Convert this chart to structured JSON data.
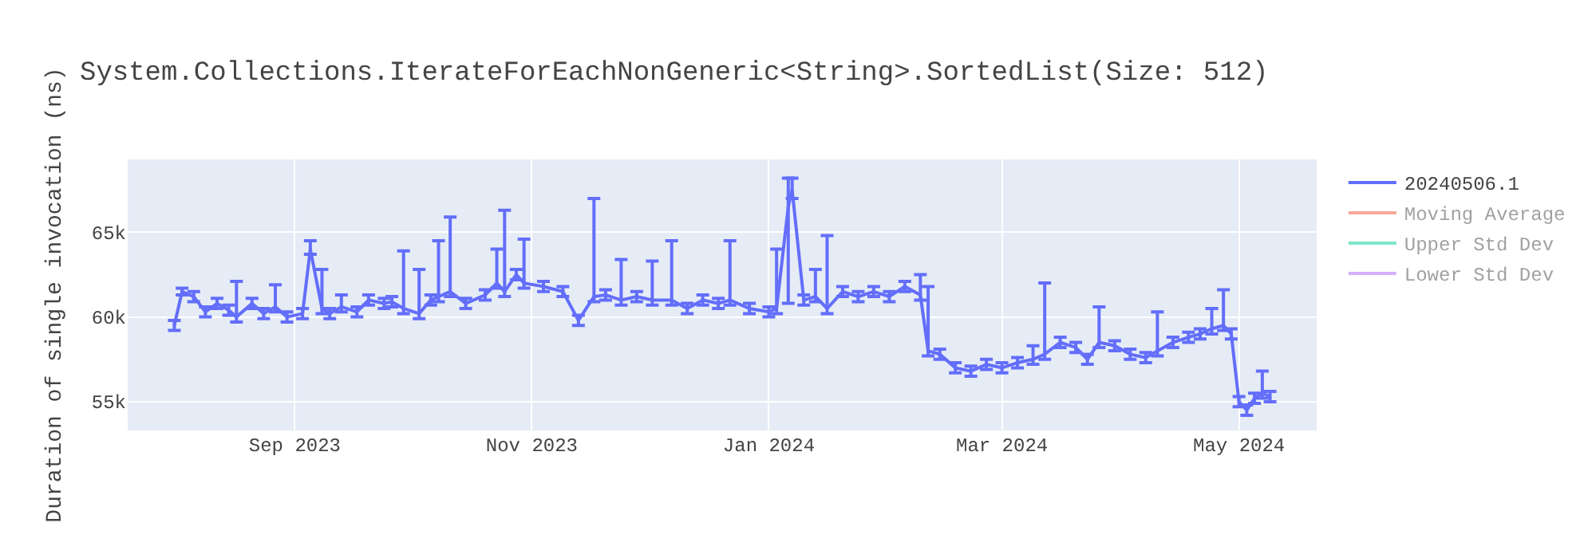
{
  "chart_data": {
    "type": "line",
    "title": "System.Collections.IterateForEachNonGeneric<String>.SortedList(Size: 512)",
    "ylabel": "Duration of single invocation (ns)",
    "x": [
      "2023-08-01",
      "2023-08-03",
      "2023-08-06",
      "2023-08-09",
      "2023-08-12",
      "2023-08-15",
      "2023-08-17",
      "2023-08-21",
      "2023-08-24",
      "2023-08-27",
      "2023-08-30",
      "2023-09-03",
      "2023-09-05",
      "2023-09-08",
      "2023-09-10",
      "2023-09-13",
      "2023-09-17",
      "2023-09-20",
      "2023-09-24",
      "2023-09-26",
      "2023-09-29",
      "2023-10-03",
      "2023-10-06",
      "2023-10-08",
      "2023-10-11",
      "2023-10-15",
      "2023-10-20",
      "2023-10-23",
      "2023-10-25",
      "2023-10-28",
      "2023-10-30",
      "2023-11-04",
      "2023-11-09",
      "2023-11-13",
      "2023-11-17",
      "2023-11-20",
      "2023-11-24",
      "2023-11-28",
      "2023-12-02",
      "2023-12-07",
      "2023-12-11",
      "2023-12-15",
      "2023-12-19",
      "2023-12-22",
      "2023-12-27",
      "2024-01-01",
      "2024-01-03",
      "2024-01-06",
      "2024-01-07",
      "2024-01-10",
      "2024-01-13",
      "2024-01-16",
      "2024-01-20",
      "2024-01-24",
      "2024-01-28",
      "2024-02-01",
      "2024-02-05",
      "2024-02-09",
      "2024-02-11",
      "2024-02-14",
      "2024-02-18",
      "2024-02-22",
      "2024-02-26",
      "2024-03-01",
      "2024-03-05",
      "2024-03-09",
      "2024-03-12",
      "2024-03-16",
      "2024-03-20",
      "2024-03-23",
      "2024-03-26",
      "2024-03-30",
      "2024-04-03",
      "2024-04-07",
      "2024-04-10",
      "2024-04-14",
      "2024-04-18",
      "2024-04-21",
      "2024-04-24",
      "2024-04-27",
      "2024-04-29",
      "2024-05-01",
      "2024-05-03",
      "2024-05-05",
      "2024-05-07",
      "2024-05-09"
    ],
    "series": [
      {
        "name": "20240506.1",
        "color": "#636efa",
        "values": [
          59500,
          61500,
          61200,
          60300,
          60800,
          60400,
          60000,
          60800,
          60200,
          60600,
          60000,
          60200,
          64000,
          60500,
          60200,
          60600,
          60300,
          61000,
          60800,
          60900,
          60500,
          60200,
          61000,
          61200,
          61500,
          60800,
          61300,
          62000,
          61500,
          62500,
          62000,
          61800,
          61500,
          59800,
          61200,
          61300,
          61000,
          61200,
          61000,
          61000,
          60500,
          61000,
          60800,
          61000,
          60500,
          60300,
          60500,
          66500,
          67500,
          61000,
          61200,
          60500,
          61500,
          61200,
          61500,
          61200,
          61800,
          61300,
          58000,
          57800,
          57000,
          56800,
          57200,
          57000,
          57300,
          57500,
          57800,
          58500,
          58200,
          57500,
          58500,
          58300,
          57800,
          57600,
          58000,
          58500,
          58800,
          59000,
          59300,
          59500,
          59000,
          55000,
          54500,
          55200,
          55500,
          55300
        ],
        "errors": [
          300,
          200,
          300,
          300,
          300,
          300,
          [
            59700,
            62100
          ],
          300,
          300,
          [
            60300,
            61900
          ],
          300,
          300,
          [
            63700,
            64500
          ],
          [
            60200,
            62800
          ],
          300,
          [
            60300,
            61300
          ],
          300,
          300,
          300,
          300,
          [
            60200,
            63900
          ],
          [
            59900,
            62800
          ],
          300,
          [
            60900,
            64500
          ],
          [
            61200,
            65900
          ],
          300,
          300,
          [
            61700,
            64000
          ],
          [
            61200,
            66300
          ],
          300,
          [
            61700,
            64600
          ],
          300,
          300,
          300,
          [
            60900,
            67000
          ],
          300,
          [
            60700,
            63400
          ],
          300,
          [
            60700,
            63300
          ],
          [
            60700,
            64500
          ],
          300,
          300,
          300,
          [
            60700,
            64500
          ],
          300,
          300,
          [
            60200,
            64000
          ],
          [
            60800,
            68200
          ],
          [
            67000,
            68200
          ],
          300,
          [
            60900,
            62800
          ],
          [
            60200,
            64800
          ],
          300,
          300,
          300,
          300,
          300,
          [
            61000,
            62500
          ],
          [
            57700,
            61800
          ],
          300,
          300,
          300,
          300,
          300,
          300,
          [
            57200,
            58300
          ],
          [
            57500,
            62000
          ],
          300,
          300,
          300,
          [
            58200,
            60600
          ],
          300,
          300,
          300,
          [
            57700,
            60300
          ],
          300,
          300,
          300,
          [
            59000,
            60500
          ],
          [
            59200,
            61600
          ],
          300,
          300,
          300,
          300,
          [
            55200,
            56800
          ],
          300
        ]
      },
      {
        "name": "Moving Average",
        "color": "#ef553b",
        "values": [
          null,
          null,
          null,
          null,
          null,
          null,
          null,
          null,
          null,
          null,
          null,
          null,
          null,
          null,
          null,
          null,
          null,
          null,
          null,
          null,
          null,
          null,
          null,
          null,
          null,
          null,
          null,
          null,
          null,
          null,
          null,
          null,
          null,
          null,
          null,
          null,
          null,
          null,
          null,
          null,
          null,
          null,
          null,
          null,
          null,
          null,
          null,
          null,
          null,
          null,
          null,
          null,
          null,
          null,
          null,
          null,
          null,
          null,
          null,
          null,
          null,
          null,
          null,
          null,
          null,
          null,
          null,
          null,
          null,
          null,
          null,
          null,
          null,
          null,
          null,
          null,
          null,
          null,
          null,
          null,
          null,
          null,
          null,
          null,
          null,
          null
        ]
      },
      {
        "name": "Upper Std Dev",
        "color": "#00cc96",
        "values": [
          null,
          null,
          null,
          null,
          null,
          null,
          null,
          null,
          null,
          null,
          null,
          null,
          null,
          null,
          null,
          null,
          null,
          null,
          null,
          null,
          null,
          null,
          null,
          null,
          null,
          null,
          null,
          null,
          null,
          null,
          null,
          null,
          null,
          null,
          null,
          null,
          null,
          null,
          null,
          null,
          null,
          null,
          null,
          null,
          null,
          null,
          null,
          null,
          null,
          null,
          null,
          null,
          null,
          null,
          null,
          null,
          null,
          null,
          null,
          null,
          null,
          null,
          null,
          null,
          null,
          null,
          null,
          null,
          null,
          null,
          null,
          null,
          null,
          null,
          null,
          null,
          null,
          null,
          null,
          null,
          null,
          null,
          null,
          null,
          null,
          null
        ]
      },
      {
        "name": "Lower Std Dev",
        "color": "#ab63fa",
        "values": [
          null,
          null,
          null,
          null,
          null,
          null,
          null,
          null,
          null,
          null,
          null,
          null,
          null,
          null,
          null,
          null,
          null,
          null,
          null,
          null,
          null,
          null,
          null,
          null,
          null,
          null,
          null,
          null,
          null,
          null,
          null,
          null,
          null,
          null,
          null,
          null,
          null,
          null,
          null,
          null,
          null,
          null,
          null,
          null,
          null,
          null,
          null,
          null,
          null,
          null,
          null,
          null,
          null,
          null,
          null,
          null,
          null,
          null,
          null,
          null,
          null,
          null,
          null,
          null,
          null,
          null,
          null,
          null,
          null,
          null,
          null,
          null,
          null,
          null,
          null,
          null,
          null,
          null,
          null,
          null,
          null,
          null,
          null,
          null,
          null,
          null
        ]
      }
    ],
    "xlim": [
      "2023-07-20",
      "2024-05-21"
    ],
    "xticks": [
      {
        "value": "2023-09-01",
        "label": "Sep 2023"
      },
      {
        "value": "2023-11-01",
        "label": "Nov 2023"
      },
      {
        "value": "2024-01-01",
        "label": "Jan 2024"
      },
      {
        "value": "2024-03-01",
        "label": "Mar 2024"
      },
      {
        "value": "2024-05-01",
        "label": "May 2024"
      }
    ],
    "ylim": [
      53300,
      69300
    ],
    "yticks": [
      {
        "value": 55000,
        "label": "55k"
      },
      {
        "value": 60000,
        "label": "60k"
      },
      {
        "value": 65000,
        "label": "65k"
      }
    ],
    "grid": true,
    "legend": "top right"
  }
}
